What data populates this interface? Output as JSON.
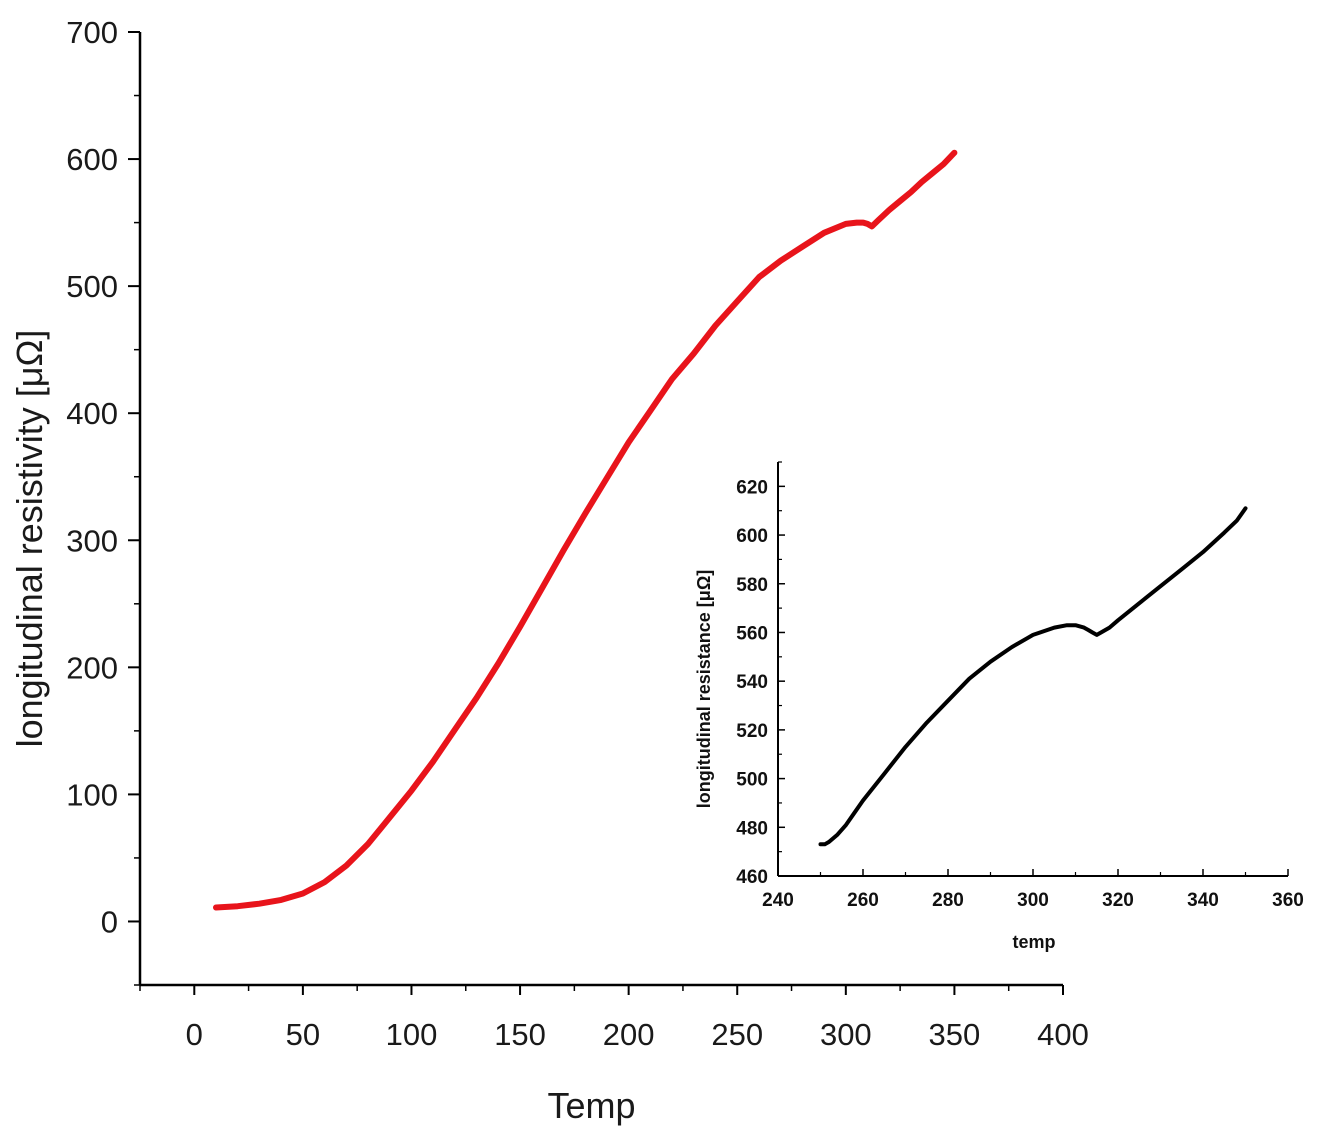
{
  "chart_data": [
    {
      "type": "line",
      "xlabel": "Temp",
      "ylabel": "longitudinal resistivity [μΩ]",
      "xlim": [
        -25,
        400
      ],
      "ylim": [
        -50,
        700
      ],
      "xticks": [
        "0",
        "50",
        "100",
        "150",
        "200",
        "250",
        "300",
        "350",
        "400"
      ],
      "yticks": [
        "0",
        "100",
        "200",
        "300",
        "400",
        "500",
        "600",
        "700"
      ],
      "series": [
        {
          "color": "#e8141b",
          "x": [
            10,
            20,
            30,
            40,
            50,
            60,
            70,
            80,
            90,
            100,
            110,
            120,
            130,
            140,
            150,
            160,
            170,
            180,
            190,
            200,
            210,
            220,
            230,
            240,
            250,
            260,
            270,
            280,
            290,
            300,
            305,
            308,
            310,
            312,
            315,
            320,
            325,
            330,
            335,
            340,
            345,
            350
          ],
          "y": [
            11,
            12,
            14,
            17,
            22,
            31,
            44,
            61,
            82,
            103,
            126,
            151,
            176,
            203,
            232,
            262,
            292,
            321,
            349,
            377,
            402,
            427,
            447,
            469,
            488,
            507,
            520,
            531,
            542,
            549,
            550,
            550,
            549,
            547,
            552,
            560,
            567,
            574,
            582,
            589,
            596,
            605
          ]
        }
      ]
    },
    {
      "type": "line",
      "xlabel": "temp",
      "ylabel": "longitudinal resistance [μΩ]",
      "xlim": [
        240,
        360
      ],
      "ylim": [
        460,
        630
      ],
      "xticks": [
        "240",
        "260",
        "280",
        "300",
        "320",
        "340",
        "360"
      ],
      "yticks": [
        "460",
        "480",
        "500",
        "520",
        "540",
        "560",
        "580",
        "600",
        "620"
      ],
      "series": [
        {
          "color": "#000000",
          "x": [
            250,
            251,
            252,
            254,
            256,
            258,
            260,
            265,
            270,
            275,
            280,
            285,
            290,
            295,
            300,
            305,
            308,
            310,
            312,
            313,
            314,
            315,
            316,
            318,
            320,
            325,
            330,
            335,
            340,
            345,
            348,
            350
          ],
          "y": [
            473,
            473,
            474,
            477,
            481,
            486,
            491,
            502,
            513,
            523,
            532,
            541,
            548,
            554,
            559,
            562,
            563,
            563,
            562,
            561,
            560,
            559,
            560,
            562,
            565,
            572,
            579,
            586,
            593,
            601,
            606,
            611
          ]
        }
      ]
    }
  ]
}
